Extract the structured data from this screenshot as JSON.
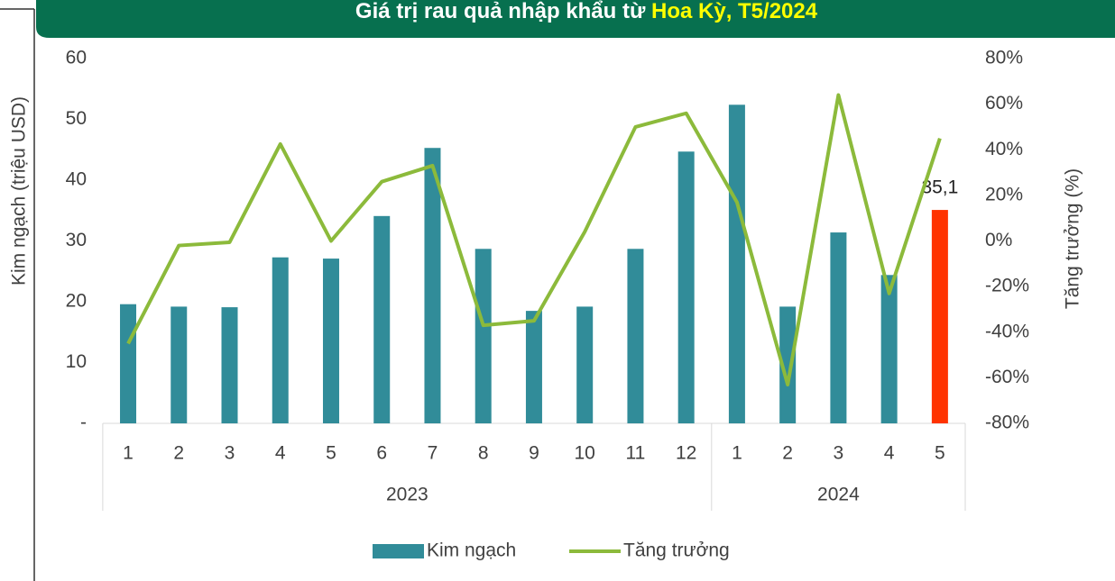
{
  "chart_data": {
    "type": "bar_line",
    "title": "Giá trị rau quả nhập khẩu từ ",
    "title_highlight": "Hoa Kỳ, T5/2024",
    "ylabel": "Kim ngạch (triệu USD)",
    "y2label": "Tăng trưởng (%)",
    "categories": [
      "1",
      "2",
      "3",
      "4",
      "5",
      "6",
      "7",
      "8",
      "9",
      "10",
      "11",
      "12",
      "1",
      "2",
      "3",
      "4",
      "5"
    ],
    "groups": [
      {
        "label": "2023",
        "size": 12
      },
      {
        "label": "2024",
        "size": 5
      }
    ],
    "series": [
      {
        "name": "Kim ngạch",
        "type": "bar",
        "color": "#318c99",
        "colors": [
          "#318c99",
          "#318c99",
          "#318c99",
          "#318c99",
          "#318c99",
          "#318c99",
          "#318c99",
          "#318c99",
          "#318c99",
          "#318c99",
          "#318c99",
          "#318c99",
          "#318c99",
          "#318c99",
          "#318c99",
          "#318c99",
          "#ff3300"
        ],
        "values": [
          19.6,
          19.2,
          19.1,
          27.3,
          27.1,
          34.1,
          45.3,
          28.7,
          18.5,
          19.2,
          28.7,
          44.7,
          52.4,
          19.2,
          31.4,
          24.4,
          35.1
        ],
        "value_labels": [
          null,
          null,
          null,
          null,
          null,
          null,
          null,
          null,
          null,
          null,
          null,
          null,
          null,
          null,
          null,
          null,
          "35,1"
        ]
      },
      {
        "name": "Tăng trưởng",
        "type": "line",
        "axis": "y2",
        "color": "#8cba3b",
        "values": [
          -45,
          -2,
          -0.6,
          42.5,
          0,
          26,
          33,
          -37,
          -35,
          4,
          50,
          56,
          17,
          -63,
          64,
          -23,
          45
        ]
      }
    ],
    "ylim": [
      0,
      60
    ],
    "yticks": [
      {
        "value": 0,
        "label": "-"
      },
      10,
      20,
      30,
      40,
      50,
      60
    ],
    "y2lim": [
      -80,
      80
    ],
    "y2ticks": [
      {
        "value": -80,
        "label": "-80%"
      },
      {
        "value": -60,
        "label": "-60%"
      },
      {
        "value": -40,
        "label": "-40%"
      },
      {
        "value": -20,
        "label": "-20%"
      },
      {
        "value": 0,
        "label": "0%"
      },
      {
        "value": 20,
        "label": "20%"
      },
      {
        "value": 40,
        "label": "40%"
      },
      {
        "value": 60,
        "label": "60%"
      },
      {
        "value": 80,
        "label": "80%"
      }
    ],
    "legend": "bottom"
  }
}
